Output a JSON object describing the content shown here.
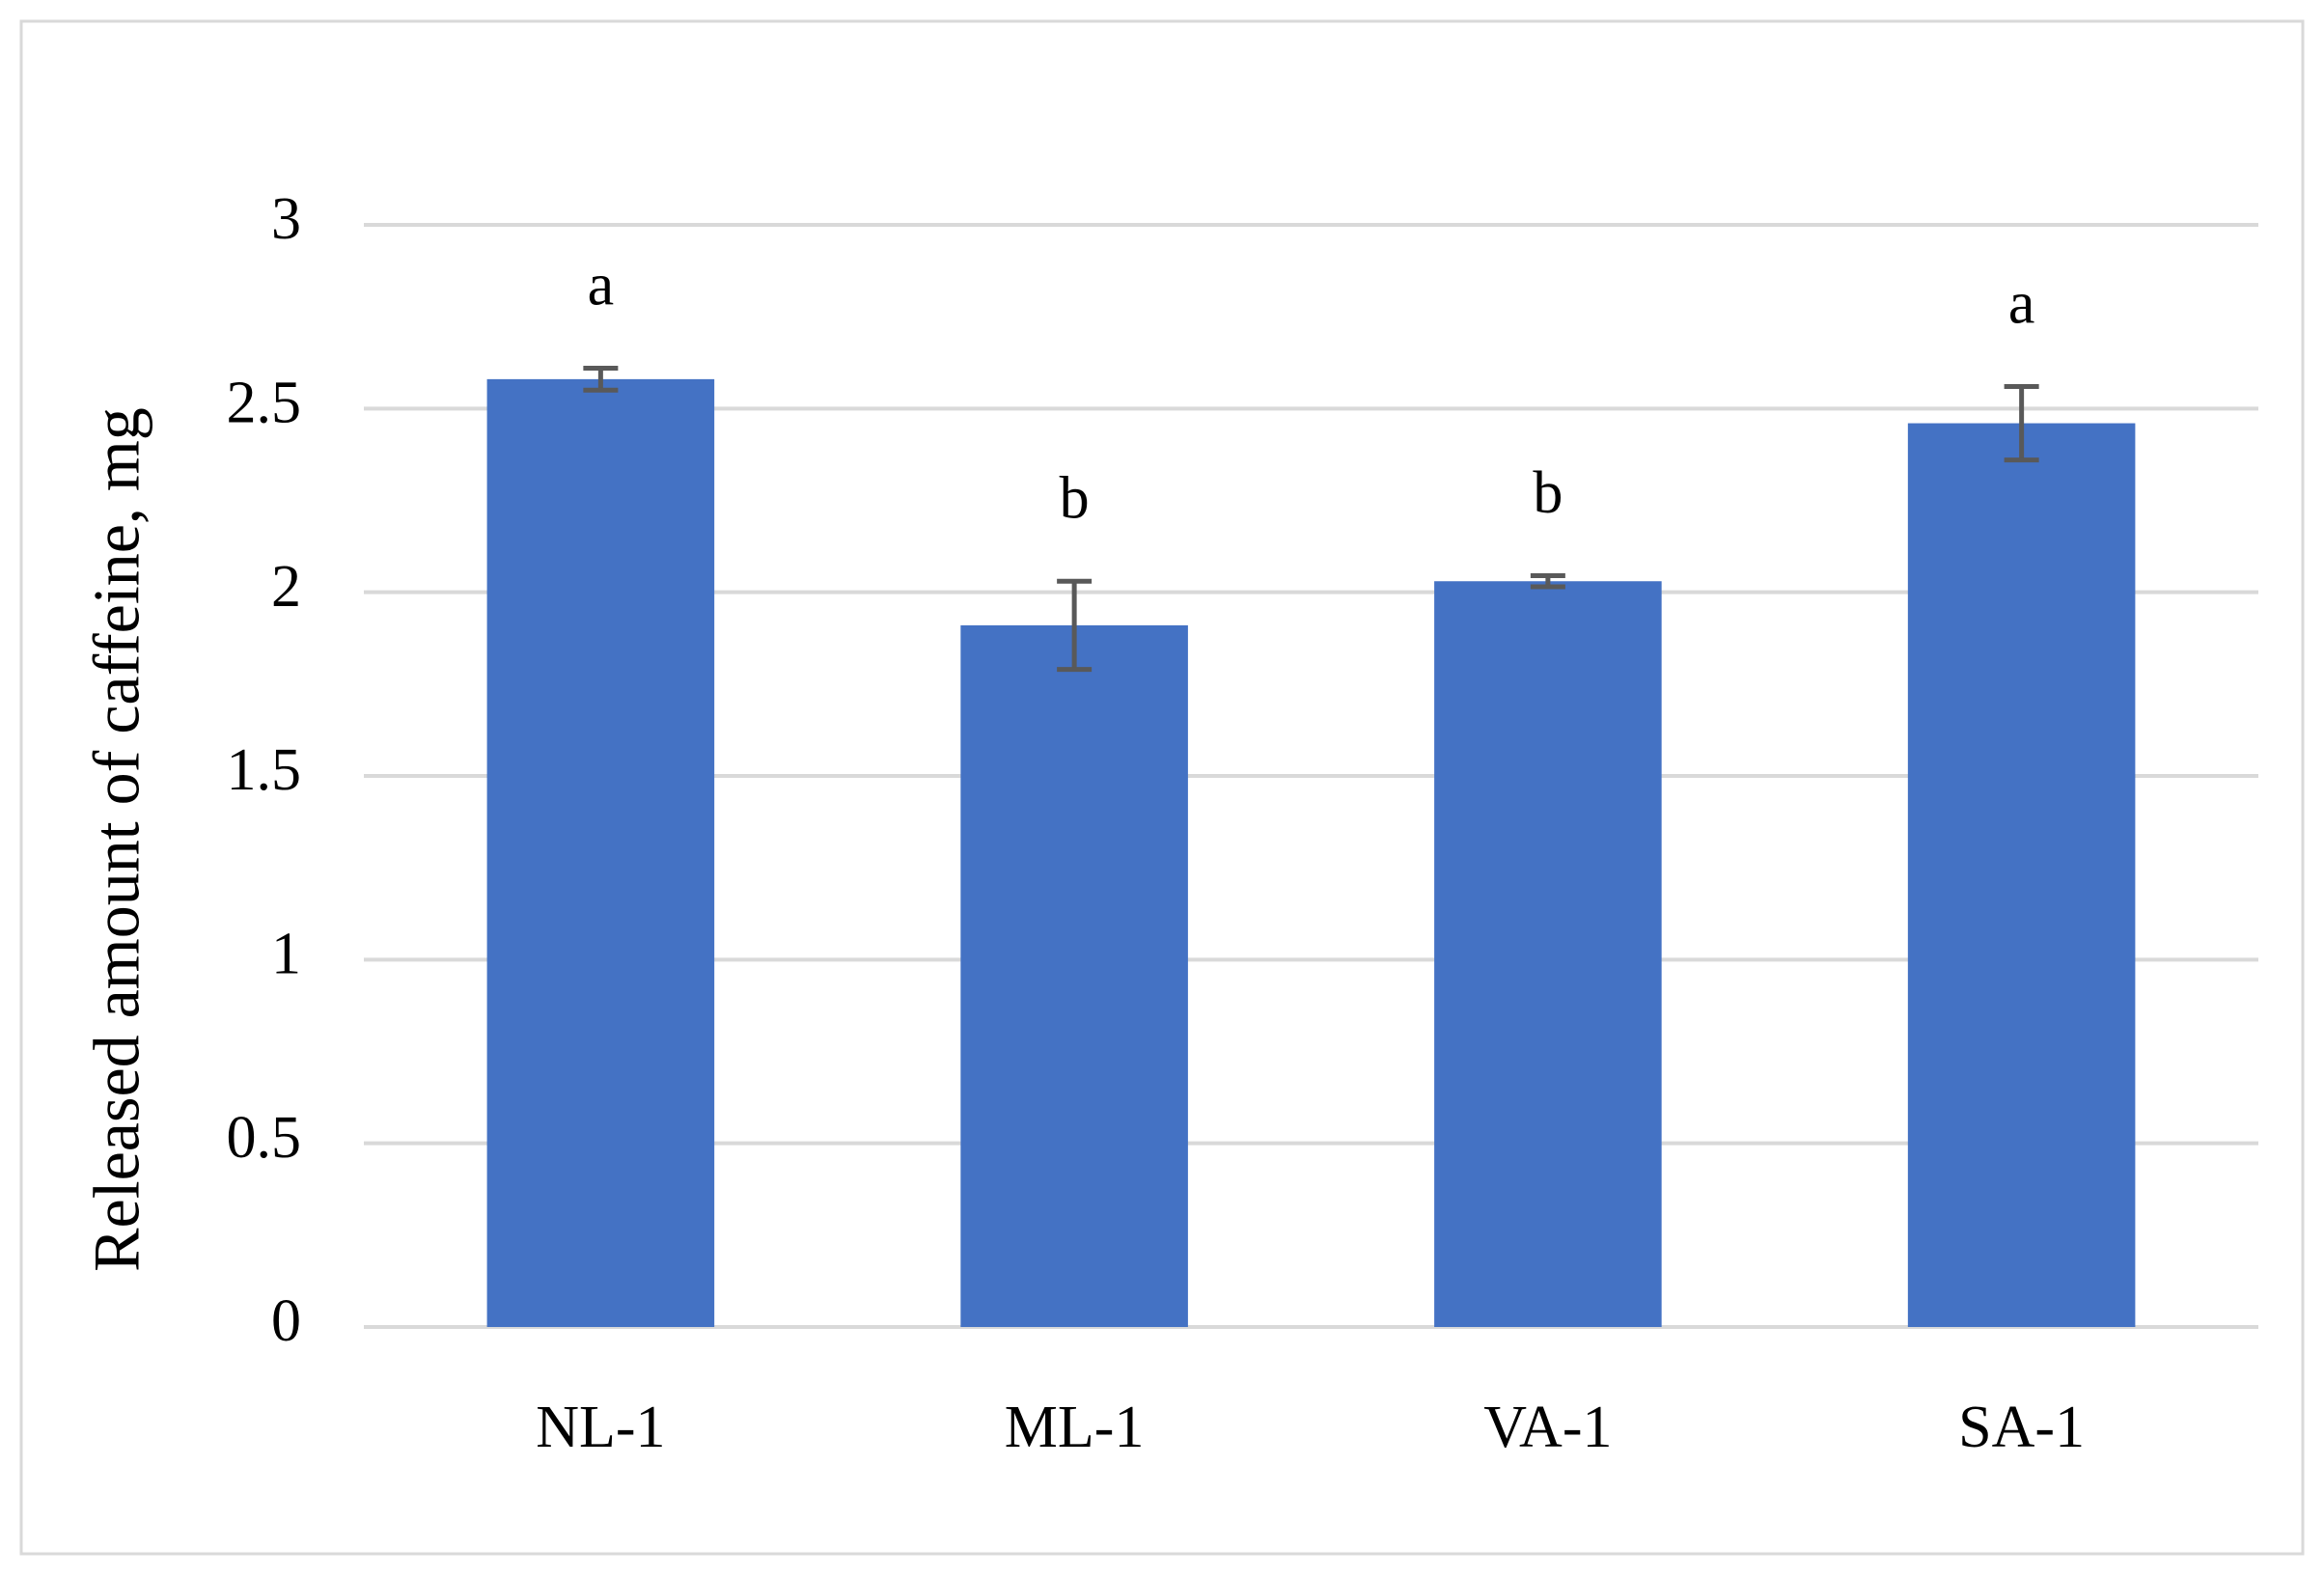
{
  "chart_data": {
    "type": "bar",
    "y_label": "Released amount of caffeine, mg",
    "categories": [
      "NL-1",
      "ML-1",
      "VA-1",
      "SA-1"
    ],
    "values": [
      2.58,
      1.91,
      2.03,
      2.46
    ],
    "errors": [
      0.03,
      0.12,
      0.015,
      0.1
    ],
    "letters": [
      "a",
      "b",
      "b",
      "a"
    ],
    "color": "#4472c4",
    "ylim": [
      0,
      3
    ],
    "yticks": [
      0,
      0.5,
      1,
      1.5,
      2,
      2.5,
      3
    ],
    "grid": true
  }
}
